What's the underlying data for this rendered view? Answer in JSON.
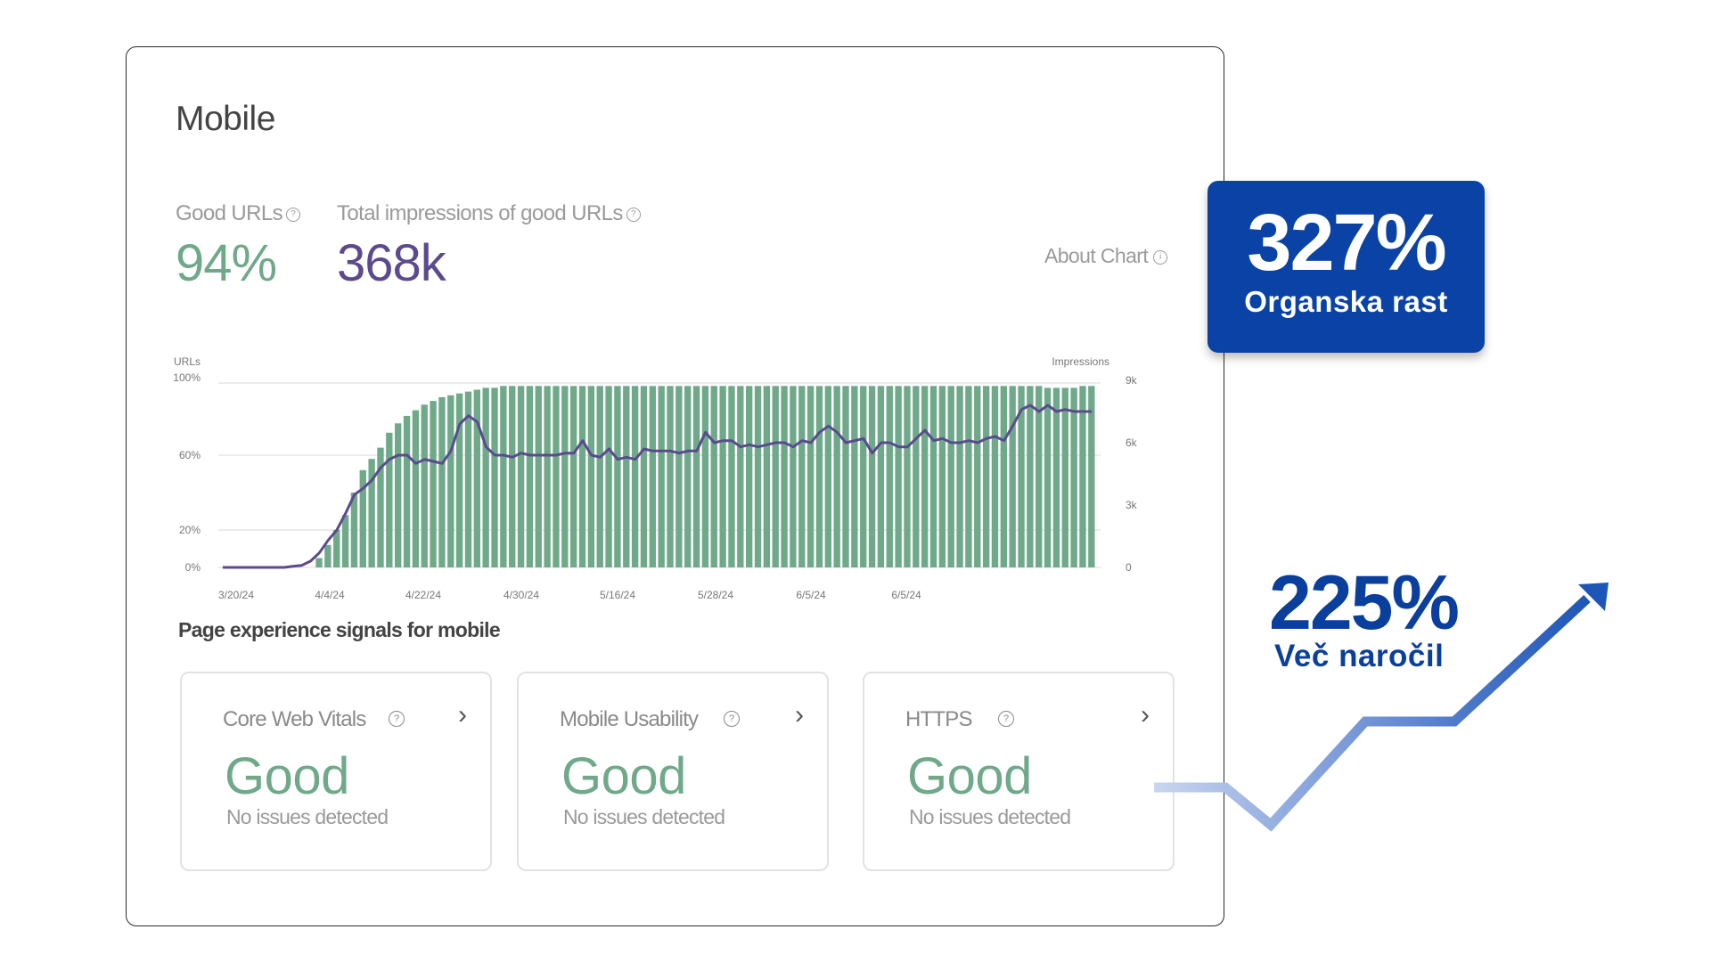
{
  "page": {
    "title": "Mobile"
  },
  "metrics": {
    "good_urls": {
      "label": "Good URLs",
      "value": "94%",
      "color": "#6fa98a"
    },
    "impressions": {
      "label": "Total impressions of good URLs",
      "value": "368k",
      "color": "#5b4a8e"
    }
  },
  "about_chart": {
    "label": "About Chart"
  },
  "chart_data": {
    "type": "bar",
    "left_axis_label": "URLs",
    "right_axis_label": "Impressions",
    "y_ticks_left": [
      "100%",
      "60%",
      "20%",
      "0%"
    ],
    "y_ticks_right": [
      "9k",
      "6k",
      "3k",
      "0"
    ],
    "x_tick_labels": [
      "3/20/24",
      "4/4/24",
      "4/22/24",
      "4/30/24",
      "5/16/24",
      "5/28/24",
      "6/5/24",
      "6/5/24"
    ],
    "ylim_left": [
      0,
      100
    ],
    "ylim_right": [
      0,
      9000
    ],
    "series": [
      {
        "name": "URLs",
        "type": "bar",
        "color": "#6fa98a",
        "values": [
          0,
          0,
          0,
          0,
          0,
          0,
          0,
          0,
          0,
          0,
          0,
          5,
          12,
          20,
          28,
          40,
          52,
          58,
          64,
          72,
          77,
          81,
          84,
          87,
          89,
          91,
          92,
          93,
          94,
          95,
          96,
          96,
          97,
          97,
          97,
          97,
          97,
          97,
          97,
          97,
          97,
          97,
          97,
          97,
          97,
          97,
          97,
          97,
          97,
          97,
          97,
          97,
          97,
          97,
          97,
          97,
          97,
          97,
          97,
          97,
          97,
          97,
          97,
          97,
          97,
          97,
          97,
          97,
          97,
          97,
          97,
          97,
          97,
          97,
          97,
          97,
          97,
          97,
          97,
          97,
          97,
          97,
          97,
          97,
          97,
          97,
          97,
          97,
          97,
          97,
          97,
          97,
          97,
          97,
          96,
          96,
          96,
          96,
          97,
          97
        ]
      },
      {
        "name": "Impressions",
        "type": "line",
        "color": "#5b4a8e",
        "values": [
          0,
          0,
          0,
          0,
          0,
          0,
          0,
          0,
          50,
          100,
          300,
          700,
          1300,
          1800,
          2600,
          3500,
          3800,
          4200,
          4800,
          5200,
          5400,
          5400,
          5000,
          5200,
          5100,
          5000,
          5600,
          6900,
          7300,
          7000,
          5800,
          5400,
          5400,
          5300,
          5500,
          5400,
          5400,
          5400,
          5400,
          5500,
          5500,
          6100,
          5400,
          5300,
          5700,
          5200,
          5300,
          5200,
          5700,
          5600,
          5600,
          5600,
          5500,
          5600,
          5600,
          6500,
          6000,
          6100,
          6100,
          5800,
          5900,
          5800,
          5900,
          6000,
          6000,
          5800,
          6100,
          6000,
          6500,
          6800,
          6500,
          6000,
          6100,
          6200,
          5500,
          6000,
          6000,
          5800,
          5800,
          6200,
          6600,
          6100,
          6200,
          6000,
          6000,
          6100,
          6000,
          6200,
          6300,
          6100,
          6800,
          7600,
          7800,
          7500,
          7800,
          7500,
          7600,
          7500,
          7500,
          7500
        ]
      }
    ]
  },
  "section": {
    "title": "Page experience signals for mobile"
  },
  "signals": [
    {
      "label": "Core Web Vitals",
      "status": "Good",
      "sub": "No issues detected"
    },
    {
      "label": "Mobile Usability",
      "status": "Good",
      "sub": "No issues detected"
    },
    {
      "label": "HTTPS",
      "status": "Good",
      "sub": "No issues detected"
    }
  ],
  "promo": {
    "badge_value": "327%",
    "badge_label": "Organska rast",
    "badge_color": "#0a42a6",
    "second_value": "225%",
    "second_label": "Več naročil",
    "arrow_color": "#1e56b8"
  },
  "icons": {
    "help": "question-circle-icon",
    "chevron": "chevron-right-icon",
    "trend": "trend-up-arrow-icon"
  }
}
